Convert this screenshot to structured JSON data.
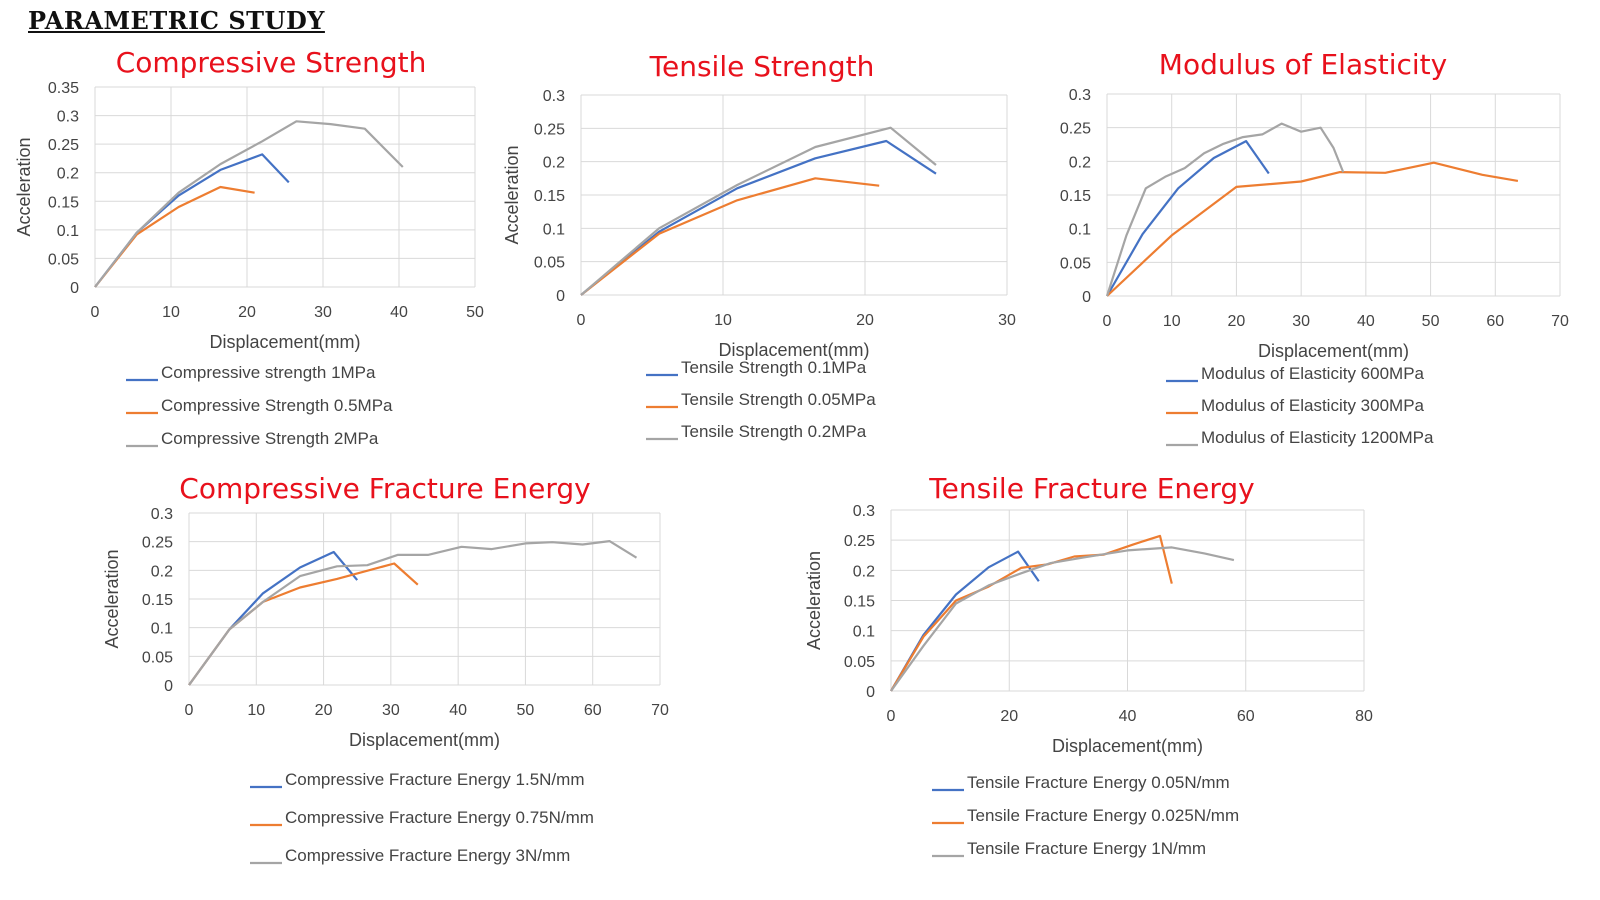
{
  "page": {
    "title": "PARAMETRIC STUDY"
  },
  "chart_data": [
    {
      "id": "compressive-strength",
      "type": "line",
      "title": "Compressive Strength",
      "xlabel": "Displacement(mm)",
      "ylabel": "Acceleration",
      "xlim": [
        0,
        50
      ],
      "ylim": [
        0,
        0.35
      ],
      "xticks": [
        "0",
        "10",
        "20",
        "30",
        "40",
        "50"
      ],
      "yticks": [
        "0",
        "0.05",
        "0.1",
        "0.15",
        "0.2",
        "0.25",
        "0.3",
        "0.35"
      ],
      "grid": true,
      "legend": "bottom",
      "series": [
        {
          "name": "Compressive strength 1MPa",
          "color": "#4472c4",
          "points": [
            [
              0,
              0
            ],
            [
              5.5,
              0.095
            ],
            [
              11,
              0.16
            ],
            [
              16.5,
              0.205
            ],
            [
              22,
              0.232
            ],
            [
              25.5,
              0.183
            ]
          ]
        },
        {
          "name": "Compressive Strength 0.5MPa",
          "color": "#ed7d31",
          "points": [
            [
              0,
              0
            ],
            [
              5.5,
              0.092
            ],
            [
              11,
              0.14
            ],
            [
              16.5,
              0.175
            ],
            [
              21,
              0.165
            ]
          ]
        },
        {
          "name": "Compressive Strength 2MPa",
          "color": "#a5a5a5",
          "points": [
            [
              0,
              0
            ],
            [
              5.5,
              0.095
            ],
            [
              11,
              0.165
            ],
            [
              16.5,
              0.215
            ],
            [
              22,
              0.255
            ],
            [
              26.5,
              0.29
            ],
            [
              31,
              0.285
            ],
            [
              35.5,
              0.277
            ],
            [
              40.5,
              0.21
            ]
          ]
        }
      ]
    },
    {
      "id": "tensile-strength",
      "type": "line",
      "title": "Tensile Strength",
      "xlabel": "Displacement(mm)",
      "ylabel": "Acceleration",
      "xlim": [
        0,
        30
      ],
      "ylim": [
        0,
        0.3
      ],
      "xticks": [
        "0",
        "10",
        "20",
        "30"
      ],
      "yticks": [
        "0",
        "0.05",
        "0.1",
        "0.15",
        "0.2",
        "0.25",
        "0.3"
      ],
      "grid": true,
      "legend": "bottom",
      "series": [
        {
          "name": "Tensile Strength 0.1MPa",
          "color": "#4472c4",
          "points": [
            [
              0,
              0
            ],
            [
              5.5,
              0.095
            ],
            [
              11,
              0.16
            ],
            [
              16.5,
              0.205
            ],
            [
              21.5,
              0.231
            ],
            [
              25,
              0.182
            ]
          ]
        },
        {
          "name": "Tensile Strength 0.05MPa",
          "color": "#ed7d31",
          "points": [
            [
              0,
              0
            ],
            [
              5.5,
              0.092
            ],
            [
              11,
              0.142
            ],
            [
              16.5,
              0.175
            ],
            [
              21,
              0.164
            ]
          ]
        },
        {
          "name": "Tensile Strength 0.2MPa",
          "color": "#a5a5a5",
          "points": [
            [
              0,
              0
            ],
            [
              5.5,
              0.1
            ],
            [
              11,
              0.165
            ],
            [
              16.5,
              0.222
            ],
            [
              21.8,
              0.251
            ],
            [
              25,
              0.195
            ]
          ]
        }
      ]
    },
    {
      "id": "modulus-of-elasticity",
      "type": "line",
      "title": "Modulus of Elasticity",
      "xlabel": "Displacement(mm)",
      "ylabel": "",
      "xlim": [
        0,
        70
      ],
      "ylim": [
        0,
        0.3
      ],
      "xticks": [
        "0",
        "10",
        "20",
        "30",
        "40",
        "50",
        "60",
        "70"
      ],
      "yticks": [
        "0",
        "0.05",
        "0.1",
        "0.15",
        "0.2",
        "0.25",
        "0.3"
      ],
      "grid": true,
      "legend": "bottom",
      "series": [
        {
          "name": "Modulus of Elasticity 600MPa",
          "color": "#4472c4",
          "points": [
            [
              0,
              0
            ],
            [
              5.5,
              0.092
            ],
            [
              11,
              0.16
            ],
            [
              16.5,
              0.205
            ],
            [
              21.5,
              0.23
            ],
            [
              25,
              0.182
            ]
          ]
        },
        {
          "name": "Modulus of Elasticity 300MPa",
          "color": "#ed7d31",
          "points": [
            [
              0,
              0
            ],
            [
              10,
              0.09
            ],
            [
              20,
              0.162
            ],
            [
              30,
              0.17
            ],
            [
              36,
              0.184
            ],
            [
              43,
              0.183
            ],
            [
              50.5,
              0.198
            ],
            [
              58,
              0.18
            ],
            [
              63.5,
              0.171
            ]
          ]
        },
        {
          "name": "Modulus of Elasticity 1200MPa",
          "color": "#a5a5a5",
          "points": [
            [
              0,
              0
            ],
            [
              3,
              0.09
            ],
            [
              6,
              0.16
            ],
            [
              9,
              0.177
            ],
            [
              12,
              0.19
            ],
            [
              15,
              0.212
            ],
            [
              18,
              0.226
            ],
            [
              21,
              0.236
            ],
            [
              24,
              0.24
            ],
            [
              27,
              0.256
            ],
            [
              30,
              0.244
            ],
            [
              33,
              0.25
            ],
            [
              35,
              0.22
            ],
            [
              36.5,
              0.184
            ]
          ]
        }
      ]
    },
    {
      "id": "compressive-fracture-energy",
      "type": "line",
      "title": "Compressive Fracture Energy",
      "xlabel": "Displacement(mm)",
      "ylabel": "Acceleration",
      "xlim": [
        0,
        70
      ],
      "ylim": [
        0,
        0.3
      ],
      "xticks": [
        "0",
        "10",
        "20",
        "30",
        "40",
        "50",
        "60",
        "70"
      ],
      "yticks": [
        "0",
        "0.05",
        "0.1",
        "0.15",
        "0.2",
        "0.25",
        "0.3"
      ],
      "grid": true,
      "legend": "bottom",
      "series": [
        {
          "name": "Compressive Fracture Energy 1.5N/mm",
          "color": "#4472c4",
          "points": [
            [
              0,
              0
            ],
            [
              6,
              0.097
            ],
            [
              11,
              0.16
            ],
            [
              16.5,
              0.205
            ],
            [
              21.5,
              0.232
            ],
            [
              25,
              0.183
            ]
          ]
        },
        {
          "name": "Compressive Fracture Energy 0.75N/mm",
          "color": "#ed7d31",
          "points": [
            [
              0,
              0
            ],
            [
              6,
              0.097
            ],
            [
              11,
              0.145
            ],
            [
              16.5,
              0.17
            ],
            [
              22,
              0.185
            ],
            [
              30.5,
              0.212
            ],
            [
              34,
              0.175
            ]
          ]
        },
        {
          "name": "Compressive Fracture Energy 3N/mm",
          "color": "#a5a5a5",
          "points": [
            [
              0,
              0
            ],
            [
              6,
              0.097
            ],
            [
              11,
              0.145
            ],
            [
              16.5,
              0.19
            ],
            [
              22,
              0.207
            ],
            [
              26.5,
              0.209
            ],
            [
              31,
              0.227
            ],
            [
              35.5,
              0.227
            ],
            [
              40.5,
              0.241
            ],
            [
              45,
              0.237
            ],
            [
              50,
              0.247
            ],
            [
              54,
              0.249
            ],
            [
              58.5,
              0.245
            ],
            [
              62.5,
              0.251
            ],
            [
              66.5,
              0.222
            ]
          ]
        }
      ]
    },
    {
      "id": "tensile-fracture-energy",
      "type": "line",
      "title": "Tensile Fracture Energy",
      "xlabel": "Displacement(mm)",
      "ylabel": "Acceleration",
      "xlim": [
        0,
        80
      ],
      "ylim": [
        0,
        0.3
      ],
      "xticks": [
        "0",
        "20",
        "40",
        "60",
        "80"
      ],
      "yticks": [
        "0",
        "0.05",
        "0.1",
        "0.15",
        "0.2",
        "0.25",
        "0.3"
      ],
      "grid": true,
      "legend": "bottom",
      "series": [
        {
          "name": "Tensile Fracture Energy 0.05N/mm",
          "color": "#4472c4",
          "points": [
            [
              0,
              0
            ],
            [
              5.5,
              0.093
            ],
            [
              11,
              0.16
            ],
            [
              16.5,
              0.205
            ],
            [
              21.5,
              0.231
            ],
            [
              25,
              0.182
            ]
          ]
        },
        {
          "name": "Tensile Fracture Energy 0.025N/mm",
          "color": "#ed7d31",
          "points": [
            [
              0,
              0
            ],
            [
              5.5,
              0.09
            ],
            [
              11,
              0.15
            ],
            [
              16.5,
              0.173
            ],
            [
              22,
              0.204
            ],
            [
              26.5,
              0.21
            ],
            [
              31,
              0.223
            ],
            [
              36,
              0.226
            ],
            [
              41,
              0.243
            ],
            [
              45.5,
              0.257
            ],
            [
              47.5,
              0.178
            ]
          ]
        },
        {
          "name": "Tensile Fracture Energy 1N/mm",
          "color": "#a5a5a5",
          "points": [
            [
              0,
              0
            ],
            [
              5.5,
              0.075
            ],
            [
              11,
              0.145
            ],
            [
              16.5,
              0.175
            ],
            [
              22,
              0.195
            ],
            [
              27,
              0.212
            ],
            [
              33,
              0.222
            ],
            [
              40,
              0.233
            ],
            [
              47.5,
              0.238
            ],
            [
              53,
              0.228
            ],
            [
              58,
              0.217
            ]
          ]
        }
      ]
    }
  ]
}
